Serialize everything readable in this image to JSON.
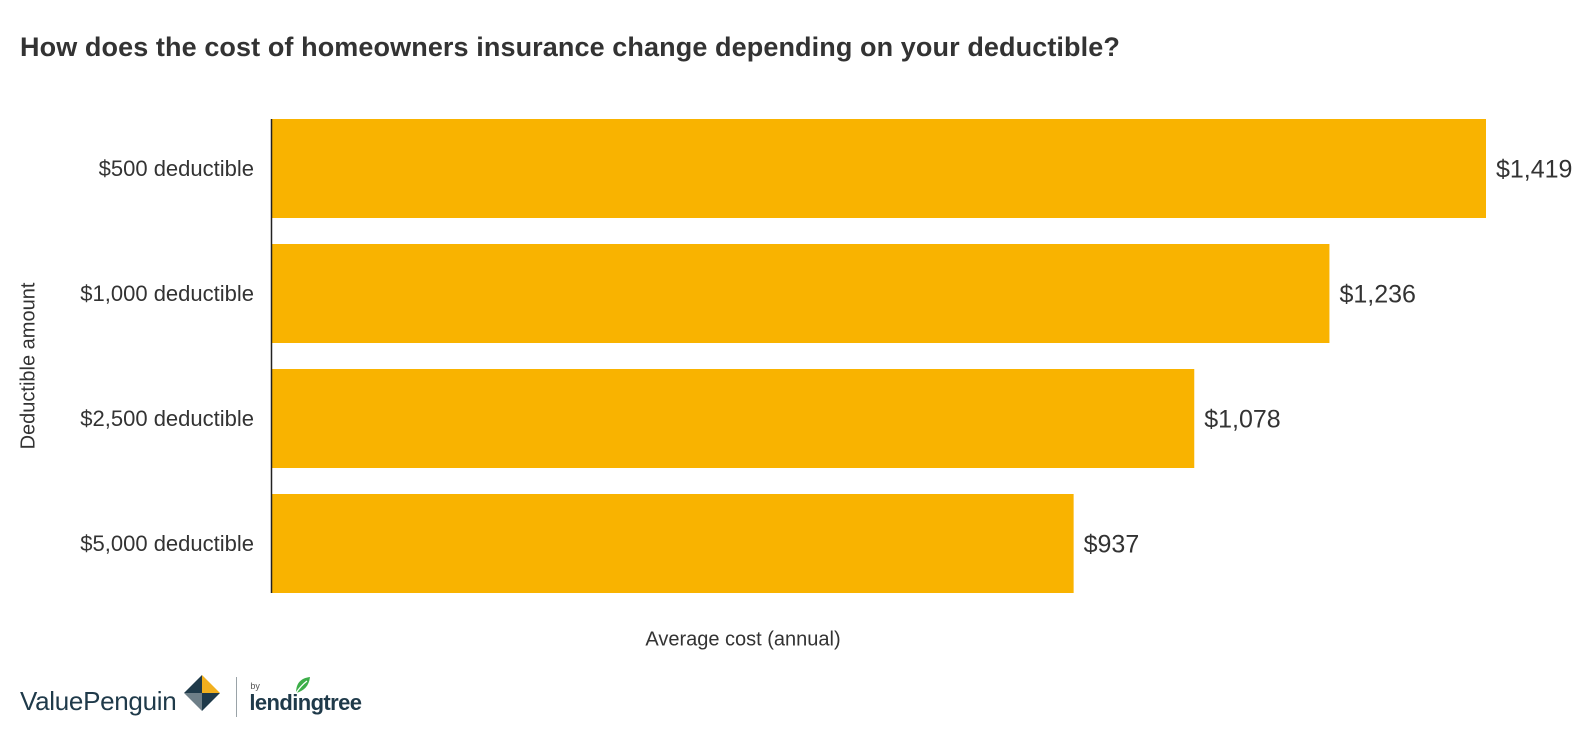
{
  "chart_data": {
    "type": "bar",
    "orientation": "horizontal",
    "title": "How does the cost of homeowners insurance change depending on your deductible?",
    "xlabel": "Average cost (annual)",
    "ylabel": "Deductible amount",
    "categories": [
      "$500 deductible",
      "$1,000 deductible",
      "$2,500 deductible",
      "$5,000 deductible"
    ],
    "values": [
      1419,
      1236,
      1078,
      937
    ],
    "value_labels": [
      "$1,419",
      "$1,236",
      "$1,078",
      "$937"
    ],
    "xlim": [
      0,
      1419
    ],
    "bar_color": "#F9B300",
    "grid": false
  },
  "footer": {
    "brand": "ValuePenguin",
    "by": "by",
    "partner": "lendingtree",
    "brand_colors": {
      "navy": "#1F3A4A",
      "gold": "#F2B01E",
      "green": "#3DAE49"
    }
  }
}
